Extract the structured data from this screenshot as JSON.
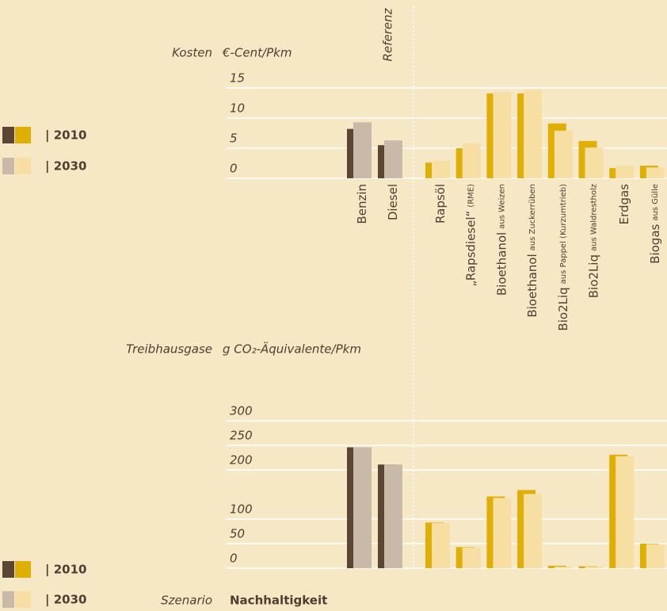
{
  "reference_label": "Referenz",
  "scenario_label": "Szenario",
  "scenario": "Nachhaltigkeit",
  "chart_data": [
    {
      "type": "bar",
      "title": "Kosten",
      "y_label": "€-Cent/Pkm",
      "categories": [
        "Benzin",
        "Diesel",
        "Rapsöl",
        "„Rapsdiesel“",
        "Bioethanol",
        "Bioethanol",
        "Bio2Liq",
        "Bio2Liq",
        "Erdgas",
        "Biogas"
      ],
      "category_notes": [
        null,
        null,
        null,
        "(RME)",
        "aus Weizen",
        "aus Zuckerrüben",
        "aus Pappel (Kurzumtrieb)",
        "aus Waldrestholz",
        null,
        "aus Gülle"
      ],
      "reference_count": 2,
      "series": [
        {
          "name": "| 2010",
          "color": "#e0af06",
          "reference_color": "#5c4533",
          "values": [
            8.2,
            5.5,
            2.6,
            5.0,
            14.1,
            14.1,
            9.1,
            6.2,
            1.7,
            2.1
          ]
        },
        {
          "name": "| 2030",
          "color": "#f7dea2",
          "reference_color": "#c9b9a9",
          "values": [
            9.3,
            6.3,
            2.9,
            5.8,
            14.3,
            14.7,
            7.9,
            5.1,
            2.1,
            1.8
          ]
        }
      ],
      "ylim": [
        0,
        15
      ],
      "yticks": [
        0,
        5,
        10,
        15
      ],
      "grid": true
    },
    {
      "type": "bar",
      "title": "Treibhausgase",
      "y_label": "g CO₂-Äquivalente/Pkm",
      "reference_count": 2,
      "series": [
        {
          "name": "| 2010",
          "color": "#e0af06",
          "reference_color": "#5c4533",
          "values": [
            246,
            211,
            93,
            43,
            146,
            159,
            5,
            4,
            231,
            50
          ]
        },
        {
          "name": "| 2030",
          "color": "#f7dea2",
          "reference_color": "#c9b9a9",
          "values": [
            246,
            211,
            92,
            42,
            143,
            151,
            3,
            3,
            228,
            49
          ]
        }
      ],
      "ylim": [
        0,
        300
      ],
      "yticks": [
        0,
        50,
        100,
        200,
        250,
        300
      ],
      "grid": true
    }
  ]
}
